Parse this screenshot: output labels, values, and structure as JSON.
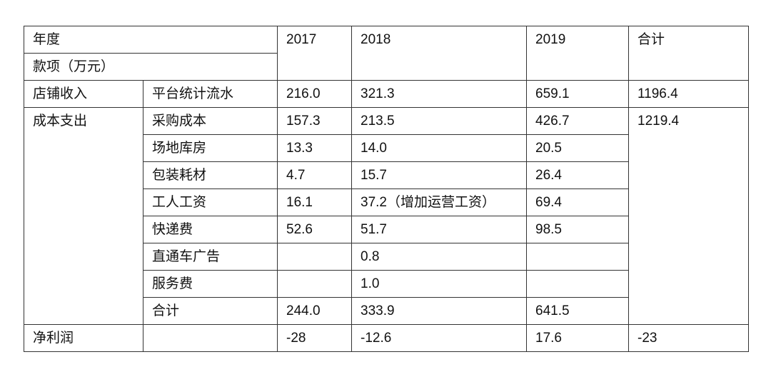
{
  "header": {
    "row_label": "年度",
    "col_label": "款项（万元）",
    "years": [
      "2017",
      "2018",
      "2019"
    ],
    "total": "合计"
  },
  "income": {
    "category": "店铺收入",
    "item": "平台统计流水",
    "values": [
      "216.0",
      "321.3",
      "659.1"
    ],
    "total": "1196.4"
  },
  "costs": {
    "category": "成本支出",
    "total": "1219.4",
    "items": [
      {
        "item": "采购成本",
        "values": [
          "157.3",
          "213.5",
          "426.7"
        ]
      },
      {
        "item": "场地库房",
        "values": [
          "13.3",
          "14.0",
          "20.5"
        ]
      },
      {
        "item": "包装耗材",
        "values": [
          "4.7",
          "15.7",
          "26.4"
        ]
      },
      {
        "item": "工人工资",
        "values": [
          "16.1",
          "37.2（增加运营工资）",
          "69.4"
        ]
      },
      {
        "item": "快递费",
        "values": [
          "52.6",
          "51.7",
          "98.5"
        ]
      },
      {
        "item": "直通车广告",
        "values": [
          null,
          "0.8",
          null
        ]
      },
      {
        "item": "服务费",
        "values": [
          null,
          "1.0",
          null
        ]
      },
      {
        "item": "合计",
        "values": [
          "244.0",
          "333.9",
          "641.5"
        ]
      }
    ]
  },
  "profit": {
    "category": "净利润",
    "values": [
      "-28",
      "-12.6",
      "17.6"
    ],
    "total": "-23"
  }
}
